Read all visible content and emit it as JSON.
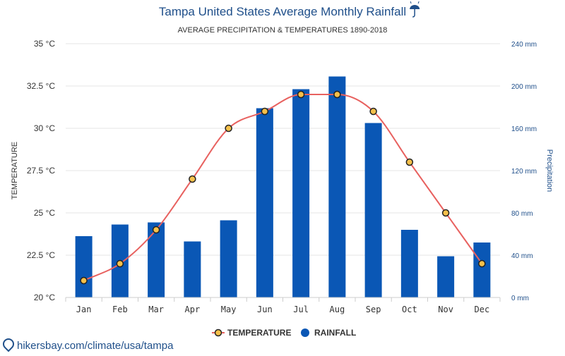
{
  "chart_data": {
    "type": "bar+line",
    "title": "Tampa United States Average Monthly Rainfall",
    "title_icon": "umbrella-rain-icon",
    "subtitle": "AVERAGE PRECIPITATION & TEMPERATURES 1890-2018",
    "categories": [
      "Jan",
      "Feb",
      "Mar",
      "Apr",
      "May",
      "Jun",
      "Jul",
      "Aug",
      "Sep",
      "Oct",
      "Nov",
      "Dec"
    ],
    "series": [
      {
        "name": "TEMPERATURE",
        "type": "line",
        "axis": "left",
        "unit": "°C",
        "values": [
          21,
          22,
          24,
          27,
          30,
          31,
          32,
          32,
          31,
          28,
          25,
          22
        ],
        "color": "#e8615f",
        "marker_fill": "#f5c04a"
      },
      {
        "name": "RAINFALL",
        "type": "bar",
        "axis": "right",
        "unit": "mm",
        "values": [
          58,
          69,
          71,
          53,
          73,
          179,
          197,
          209,
          165,
          64,
          39,
          52
        ],
        "color": "#0a57b5"
      }
    ],
    "left_axis": {
      "label": "TEMPERATURE",
      "ylim": [
        20,
        35
      ],
      "ticks": [
        "20 °C",
        "22.5 °C",
        "25 °C",
        "27.5 °C",
        "30 °C",
        "32.5 °C",
        "35 °C"
      ]
    },
    "right_axis": {
      "label": "Precipitation",
      "ylim": [
        0,
        240
      ],
      "ticks": [
        "0 mm",
        "40 mm",
        "80 mm",
        "120 mm",
        "160 mm",
        "200 mm",
        "240 mm"
      ]
    },
    "grid": true,
    "legend_position": "bottom-center"
  },
  "colors": {
    "title": "#1f4f8a",
    "subtitle": "#333333",
    "left_tick": "#333333",
    "right_tick": "#1f4f8a",
    "grid": "#e6e6e6",
    "axis_line": "#cccccc"
  },
  "footer": {
    "icon": "location-pin-icon",
    "text": "hikersbay.com/climate/usa/tampa"
  }
}
